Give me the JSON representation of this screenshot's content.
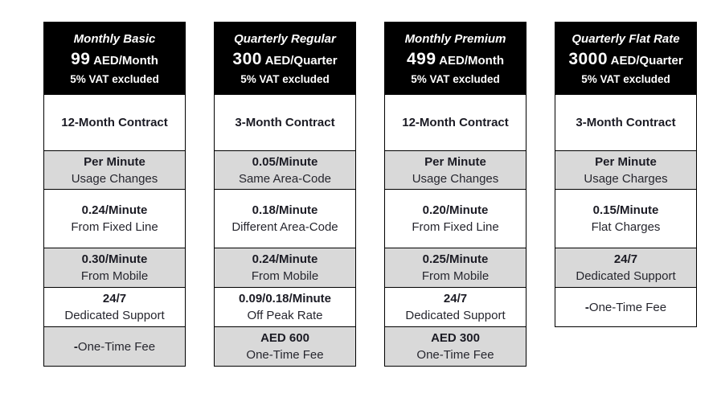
{
  "colors": {
    "header_bg": "#000000",
    "header_text": "#ffffff",
    "row_gray": "#d9d9d9",
    "row_white": "#ffffff",
    "border": "#000000",
    "text": "#1b1b24"
  },
  "columns": [
    {
      "title": "Monthly Basic",
      "price": "99",
      "price_unit": "AED/Month",
      "vat": "5% VAT excluded",
      "contract": "12-Month Contract",
      "rows": [
        {
          "value": "Per Minute",
          "label": "Usage Changes"
        },
        {
          "value": "0.24/Minute",
          "label": "From Fixed Line"
        },
        {
          "value": "0.30/Minute",
          "label": "From Mobile"
        },
        {
          "value": "24/7",
          "label": "Dedicated Support"
        },
        {
          "value": "-",
          "label": "One-Time Fee"
        }
      ]
    },
    {
      "title": "Quarterly Regular",
      "price": "300",
      "price_unit": "AED/Quarter",
      "vat": "5% VAT excluded",
      "contract": "3-Month Contract",
      "rows": [
        {
          "value": "0.05/Minute",
          "label": "Same Area-Code"
        },
        {
          "value": "0.18/Minute",
          "label": "Different Area-Code"
        },
        {
          "value": "0.24/Minute",
          "label": "From Mobile"
        },
        {
          "value": "0.09/0.18/Minute",
          "label": "Off Peak Rate"
        },
        {
          "value": "AED 600",
          "label": "One-Time Fee"
        }
      ]
    },
    {
      "title": "Monthly Premium",
      "price": "499",
      "price_unit": "AED/Month",
      "vat": "5% VAT excluded",
      "contract": "12-Month Contract",
      "rows": [
        {
          "value": "Per Minute",
          "label": "Usage Changes"
        },
        {
          "value": "0.20/Minute",
          "label": "From Fixed Line"
        },
        {
          "value": "0.25/Minute",
          "label": "From Mobile"
        },
        {
          "value": "24/7",
          "label": "Dedicated Support"
        },
        {
          "value": "AED 300",
          "label": "One-Time Fee"
        }
      ]
    },
    {
      "title": "Quarterly Flat Rate",
      "price": "3000",
      "price_unit": "AED/Quarter",
      "vat": "5% VAT excluded",
      "contract": "3-Month Contract",
      "rows": [
        {
          "value": "Per Minute",
          "label": "Usage Charges"
        },
        {
          "value": "0.15/Minute",
          "label": "Flat Charges"
        },
        {
          "value": "24/7",
          "label": "Dedicated Support"
        },
        {
          "value": "-",
          "label": "One-Time Fee"
        }
      ]
    }
  ]
}
